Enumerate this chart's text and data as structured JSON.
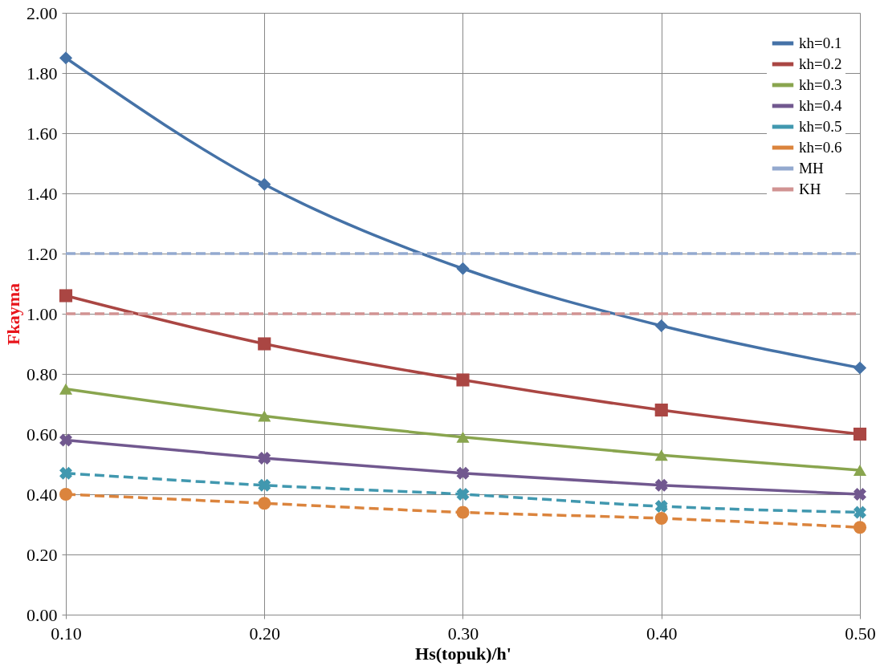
{
  "chart_data": {
    "type": "line",
    "xlabel": "Hs(topuk)/h'",
    "ylabel": "Fkayma",
    "x": [
      0.1,
      0.2,
      0.3,
      0.4,
      0.5
    ],
    "series": [
      {
        "name": "kh=0.1",
        "color": "#4572a7",
        "marker": "diamond",
        "line_style": "solid",
        "values": [
          1.85,
          1.43,
          1.15,
          0.96,
          0.82
        ]
      },
      {
        "name": "kh=0.2",
        "color": "#aa4643",
        "marker": "square",
        "line_style": "solid",
        "values": [
          1.06,
          0.9,
          0.78,
          0.68,
          0.6
        ]
      },
      {
        "name": "kh=0.3",
        "color": "#89a54e",
        "marker": "triangle",
        "line_style": "solid",
        "values": [
          0.75,
          0.66,
          0.59,
          0.53,
          0.48
        ]
      },
      {
        "name": "kh=0.4",
        "color": "#71588f",
        "marker": "cross",
        "line_style": "solid",
        "values": [
          0.58,
          0.52,
          0.47,
          0.43,
          0.4
        ]
      },
      {
        "name": "kh=0.5",
        "color": "#4198af",
        "marker": "cross",
        "line_style": "dashed",
        "values": [
          0.47,
          0.43,
          0.4,
          0.36,
          0.34
        ]
      },
      {
        "name": "kh=0.6",
        "color": "#db843d",
        "marker": "circle",
        "line_style": "dashed",
        "values": [
          0.4,
          0.37,
          0.34,
          0.32,
          0.29
        ]
      },
      {
        "name": "MH",
        "color": "#93a9cf",
        "marker": "none",
        "line_style": "dashed",
        "values": [
          1.2,
          1.2,
          1.2,
          1.2,
          1.2
        ]
      },
      {
        "name": "KH",
        "color": "#d19392",
        "marker": "none",
        "line_style": "dashed",
        "values": [
          1.0,
          1.0,
          1.0,
          1.0,
          1.0
        ]
      }
    ],
    "xlim": [
      0.1,
      0.5
    ],
    "xticks": [
      {
        "value": 0.1,
        "label": "0.10"
      },
      {
        "value": 0.2,
        "label": "0.20"
      },
      {
        "value": 0.3,
        "label": "0.30"
      },
      {
        "value": 0.4,
        "label": "0.40"
      },
      {
        "value": 0.5,
        "label": "0.50"
      }
    ],
    "ylim": [
      0,
      2
    ],
    "yticks": [
      {
        "value": 0,
        "label": "0.00"
      },
      {
        "value": 0.2,
        "label": "0.20"
      },
      {
        "value": 0.4,
        "label": "0.40"
      },
      {
        "value": 0.6,
        "label": "0.60"
      },
      {
        "value": 0.8,
        "label": "0.80"
      },
      {
        "value": 1.0,
        "label": "1.00"
      },
      {
        "value": 1.2,
        "label": "1.20"
      },
      {
        "value": 1.4,
        "label": "1.40"
      },
      {
        "value": 1.6,
        "label": "1.60"
      },
      {
        "value": 1.8,
        "label": "1.80"
      },
      {
        "value": 2.0,
        "label": "2.00"
      }
    ],
    "grid": true,
    "legend": "top right"
  }
}
